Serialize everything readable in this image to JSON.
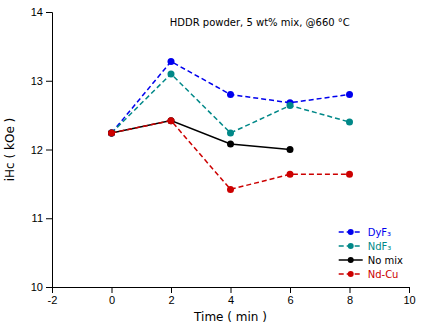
{
  "chart_data": {
    "type": "line",
    "annotation": "HDDR powder, 5 wt% mix, @660 °C",
    "xlabel": "Time ( min )",
    "ylabel": "iHc ( kOe )",
    "xlim": [
      -2,
      10
    ],
    "ylim": [
      10,
      14
    ],
    "xticks": [
      -2,
      0,
      2,
      4,
      6,
      8,
      10
    ],
    "yticks": [
      10,
      11,
      12,
      13,
      14
    ],
    "grid": false,
    "legend": "lower right",
    "series": [
      {
        "name": "DyF₃",
        "color": "#0000EE",
        "line_style": "dashed",
        "marker": "circle",
        "x": [
          0,
          2,
          4,
          6,
          8
        ],
        "values": [
          12.24,
          13.28,
          12.8,
          12.68,
          12.8
        ]
      },
      {
        "name": "NdF₃",
        "color": "#008888",
        "line_style": "dashed",
        "marker": "circle",
        "x": [
          0,
          2,
          4,
          6,
          8
        ],
        "values": [
          12.24,
          13.1,
          12.24,
          12.64,
          12.4
        ]
      },
      {
        "name": "No mix",
        "color": "#000000",
        "line_style": "solid",
        "marker": "circle",
        "x": [
          0,
          2,
          4,
          6
        ],
        "values": [
          12.24,
          12.42,
          12.08,
          12.0
        ]
      },
      {
        "name": "Nd-Cu",
        "color": "#CC0000",
        "line_style": "dashed",
        "marker": "circle",
        "x": [
          0,
          2,
          4,
          6,
          8
        ],
        "values": [
          12.24,
          12.42,
          11.42,
          11.64,
          11.64
        ]
      }
    ]
  }
}
